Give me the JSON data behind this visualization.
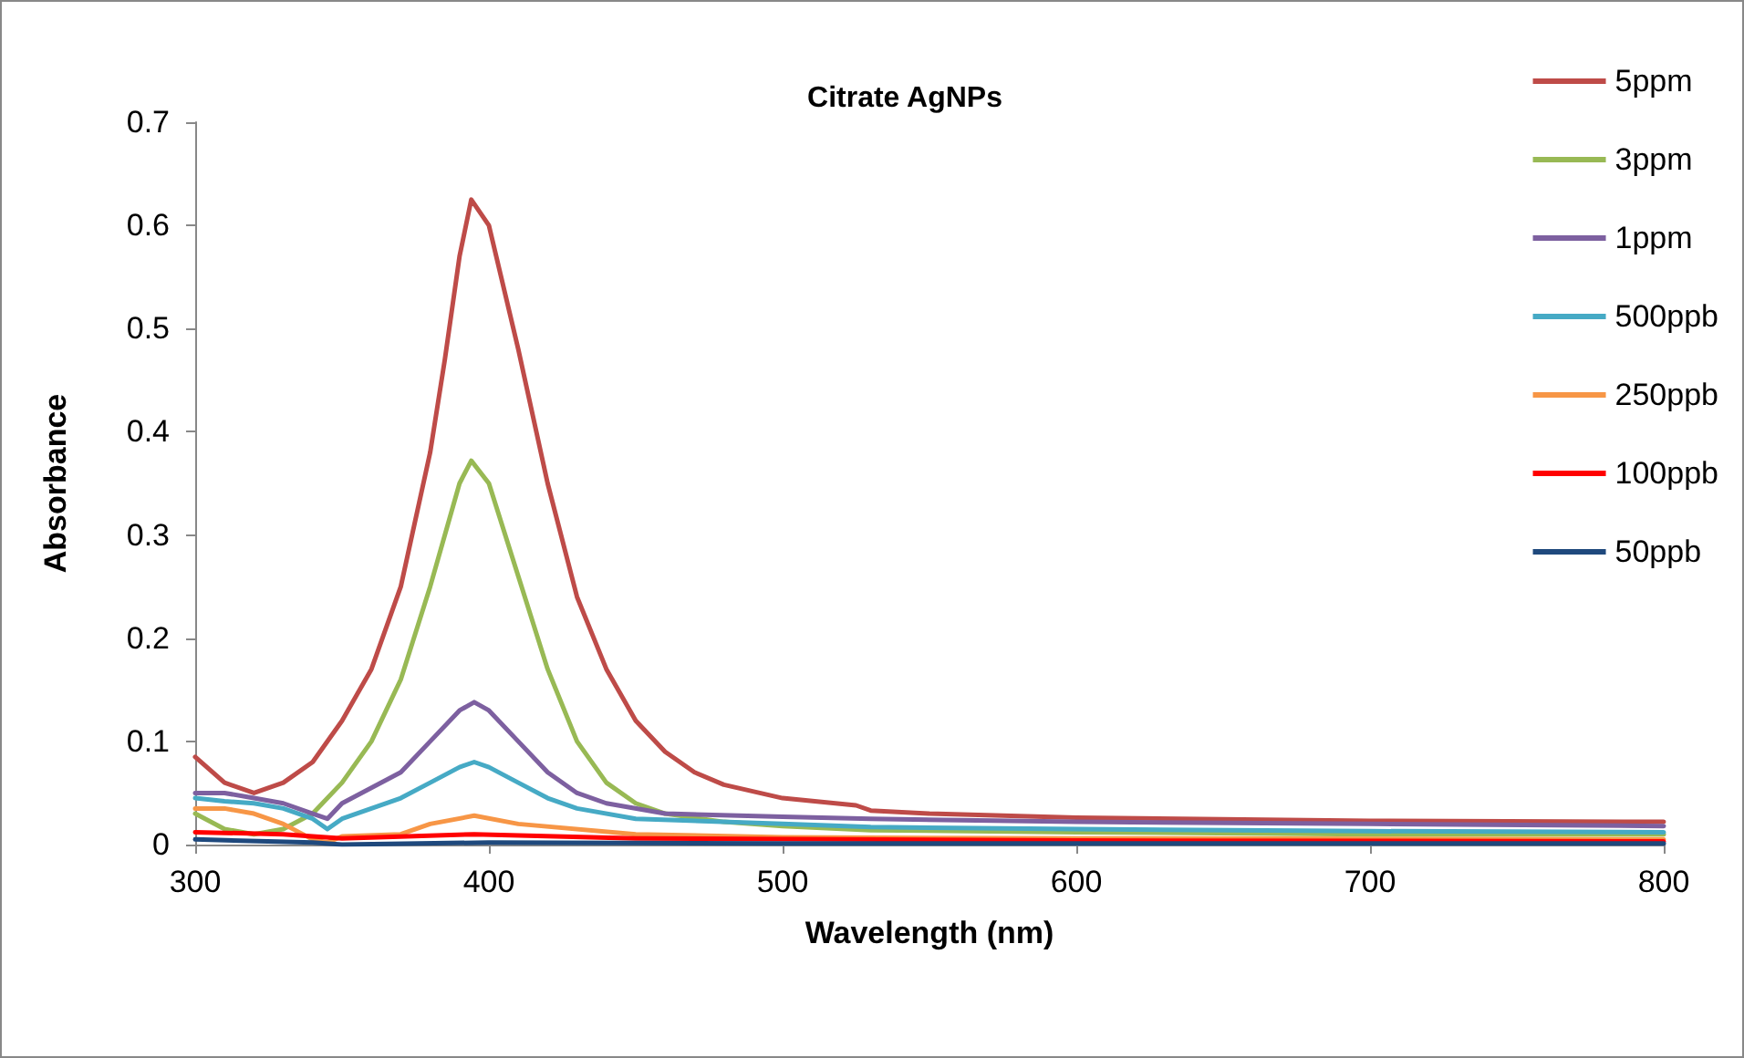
{
  "chart_data": {
    "type": "line",
    "title": "Citrate AgNPs",
    "xlabel": "Wavelength (nm)",
    "ylabel": "Absorbance",
    "xlim": [
      300,
      800
    ],
    "xticks": [
      300,
      400,
      500,
      600,
      700,
      800
    ],
    "ylim": [
      0,
      0.7
    ],
    "yticks": [
      0,
      0.1,
      0.2,
      0.3,
      0.4,
      0.5,
      0.6,
      0.7
    ],
    "grid": false,
    "legend": "top right",
    "marker": "none",
    "line_style": "solid",
    "series": [
      {
        "name": "5ppm",
        "color": "#be4b48",
        "x": [
          300,
          310,
          320,
          330,
          340,
          350,
          360,
          370,
          380,
          385,
          390,
          394,
          400,
          410,
          420,
          430,
          440,
          450,
          460,
          470,
          480,
          500,
          525,
          530,
          550,
          600,
          700,
          800
        ],
        "values": [
          0.085,
          0.06,
          0.05,
          0.06,
          0.08,
          0.12,
          0.17,
          0.25,
          0.38,
          0.47,
          0.57,
          0.625,
          0.6,
          0.48,
          0.35,
          0.24,
          0.17,
          0.12,
          0.09,
          0.07,
          0.058,
          0.045,
          0.038,
          0.033,
          0.03,
          0.026,
          0.023,
          0.022
        ]
      },
      {
        "name": "3ppm",
        "color": "#98b954",
        "x": [
          300,
          310,
          320,
          330,
          340,
          350,
          360,
          370,
          380,
          390,
          394,
          400,
          410,
          420,
          430,
          440,
          450,
          460,
          480,
          500,
          530,
          600,
          700,
          800
        ],
        "values": [
          0.03,
          0.015,
          0.01,
          0.015,
          0.03,
          0.06,
          0.1,
          0.16,
          0.25,
          0.35,
          0.372,
          0.35,
          0.26,
          0.17,
          0.1,
          0.06,
          0.04,
          0.03,
          0.022,
          0.018,
          0.014,
          0.012,
          0.01,
          0.01
        ]
      },
      {
        "name": "1ppm",
        "color": "#7d60a0",
        "x": [
          300,
          310,
          320,
          330,
          340,
          345,
          350,
          360,
          370,
          380,
          390,
          395,
          400,
          410,
          420,
          430,
          440,
          460,
          500,
          530,
          600,
          700,
          800
        ],
        "values": [
          0.05,
          0.05,
          0.045,
          0.04,
          0.03,
          0.025,
          0.04,
          0.055,
          0.07,
          0.1,
          0.13,
          0.138,
          0.13,
          0.1,
          0.07,
          0.05,
          0.04,
          0.03,
          0.027,
          0.025,
          0.022,
          0.02,
          0.018
        ]
      },
      {
        "name": "500ppb",
        "color": "#46aac5",
        "x": [
          300,
          310,
          320,
          330,
          340,
          345,
          350,
          360,
          370,
          380,
          390,
          395,
          400,
          410,
          420,
          430,
          450,
          500,
          530,
          600,
          700,
          800
        ],
        "values": [
          0.045,
          0.042,
          0.04,
          0.035,
          0.025,
          0.015,
          0.025,
          0.035,
          0.045,
          0.06,
          0.075,
          0.08,
          0.075,
          0.06,
          0.045,
          0.035,
          0.025,
          0.02,
          0.017,
          0.015,
          0.013,
          0.012
        ]
      },
      {
        "name": "250ppb",
        "color": "#f79646",
        "x": [
          300,
          310,
          320,
          330,
          340,
          345,
          350,
          370,
          380,
          395,
          410,
          450,
          500,
          600,
          800
        ],
        "values": [
          0.035,
          0.035,
          0.03,
          0.02,
          0.005,
          0.002,
          0.008,
          0.01,
          0.02,
          0.028,
          0.02,
          0.01,
          0.007,
          0.006,
          0.005
        ]
      },
      {
        "name": "100ppb",
        "color": "#ff0000",
        "x": [
          300,
          330,
          350,
          395,
          450,
          600,
          800
        ],
        "values": [
          0.012,
          0.01,
          0.006,
          0.01,
          0.006,
          0.004,
          0.003
        ]
      },
      {
        "name": "50ppb",
        "color": "#1f497d",
        "x": [
          300,
          340,
          350,
          400,
          500,
          800
        ],
        "values": [
          0.005,
          0.002,
          0,
          0.002,
          0.001,
          0.001
        ]
      }
    ]
  }
}
